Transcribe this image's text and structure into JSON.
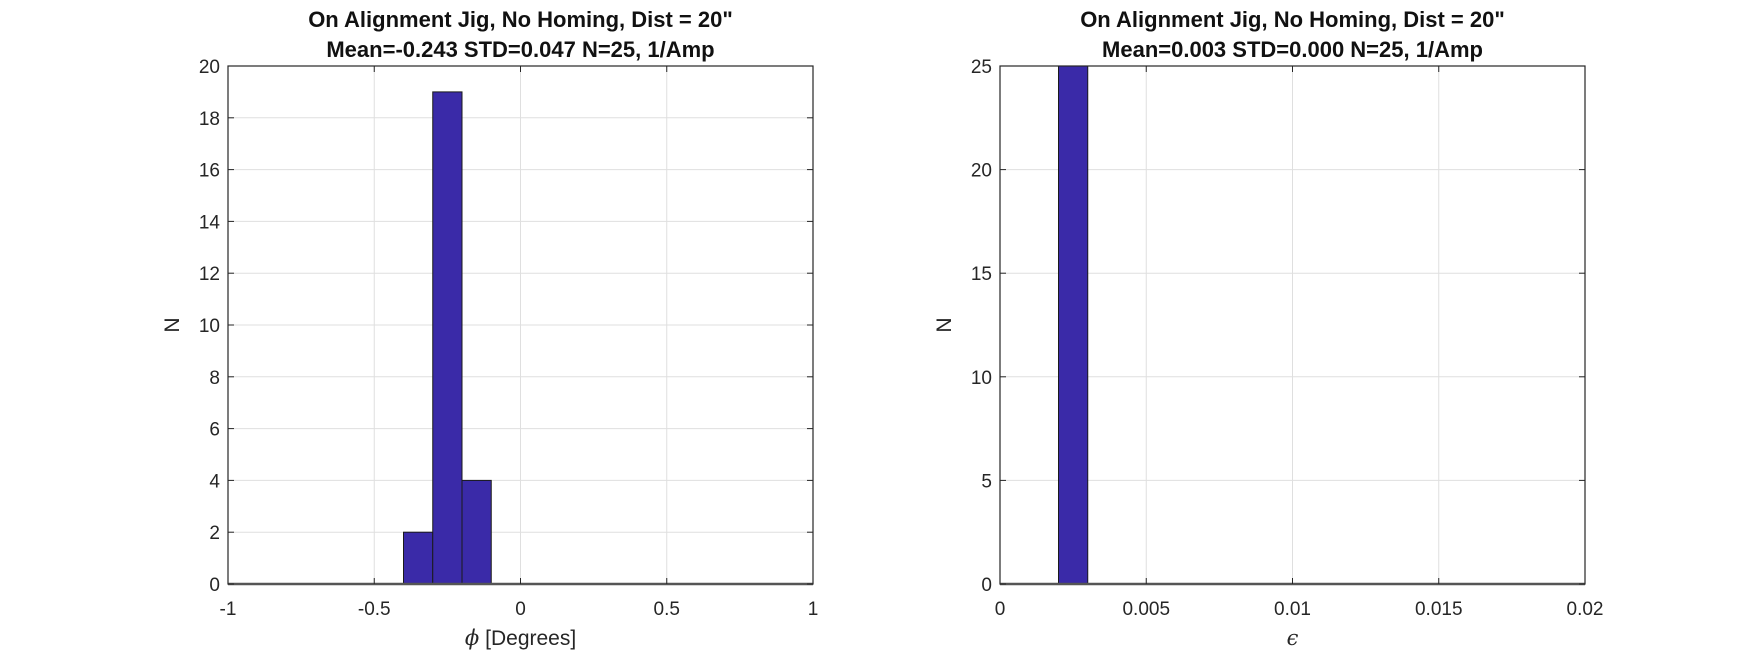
{
  "chart_data": [
    {
      "type": "bar",
      "title": "On Alignment Jig, No Homing, Dist = 20\"",
      "subtitle": "Mean=-0.243 STD=0.047 N=25, 1/Amp",
      "xlabel_symbol": "ϕ",
      "xlabel": "[Degrees]",
      "ylabel": "N",
      "xlim": [
        -1,
        1
      ],
      "ylim": [
        0,
        20
      ],
      "xticks": [
        -1,
        -0.5,
        0,
        0.5,
        1
      ],
      "xtick_labels": [
        "-1",
        "-0.5",
        "0",
        "0.5",
        "1"
      ],
      "yticks": [
        0,
        2,
        4,
        6,
        8,
        10,
        12,
        14,
        16,
        18,
        20
      ],
      "ytick_labels": [
        "0",
        "2",
        "4",
        "6",
        "8",
        "10",
        "12",
        "14",
        "16",
        "18",
        "20"
      ],
      "bins": [
        {
          "x0": -0.4,
          "x1": -0.3,
          "count": 2
        },
        {
          "x0": -0.3,
          "x1": -0.2,
          "count": 19
        },
        {
          "x0": -0.2,
          "x1": -0.1,
          "count": 4
        }
      ],
      "grid": true
    },
    {
      "type": "bar",
      "title": "On Alignment Jig, No Homing, Dist = 20\"",
      "subtitle": "Mean=0.003 STD=0.000 N=25, 1/Amp",
      "xlabel_symbol": "ϵ",
      "xlabel": "",
      "ylabel": "N",
      "xlim": [
        0,
        0.02
      ],
      "ylim": [
        0,
        25
      ],
      "xticks": [
        0,
        0.005,
        0.01,
        0.015,
        0.02
      ],
      "xtick_labels": [
        "0",
        "0.005",
        "0.01",
        "0.015",
        "0.02"
      ],
      "yticks": [
        0,
        5,
        10,
        15,
        20,
        25
      ],
      "ytick_labels": [
        "0",
        "5",
        "10",
        "15",
        "20",
        "25"
      ],
      "bins": [
        {
          "x0": 0.002,
          "x1": 0.003,
          "count": 25
        }
      ],
      "grid": true
    }
  ],
  "colors": {
    "bar_fill": "#3a2aa8",
    "bar_edge": "#1a1a1a",
    "grid": "#dfdfdf",
    "axis": "#262626"
  }
}
